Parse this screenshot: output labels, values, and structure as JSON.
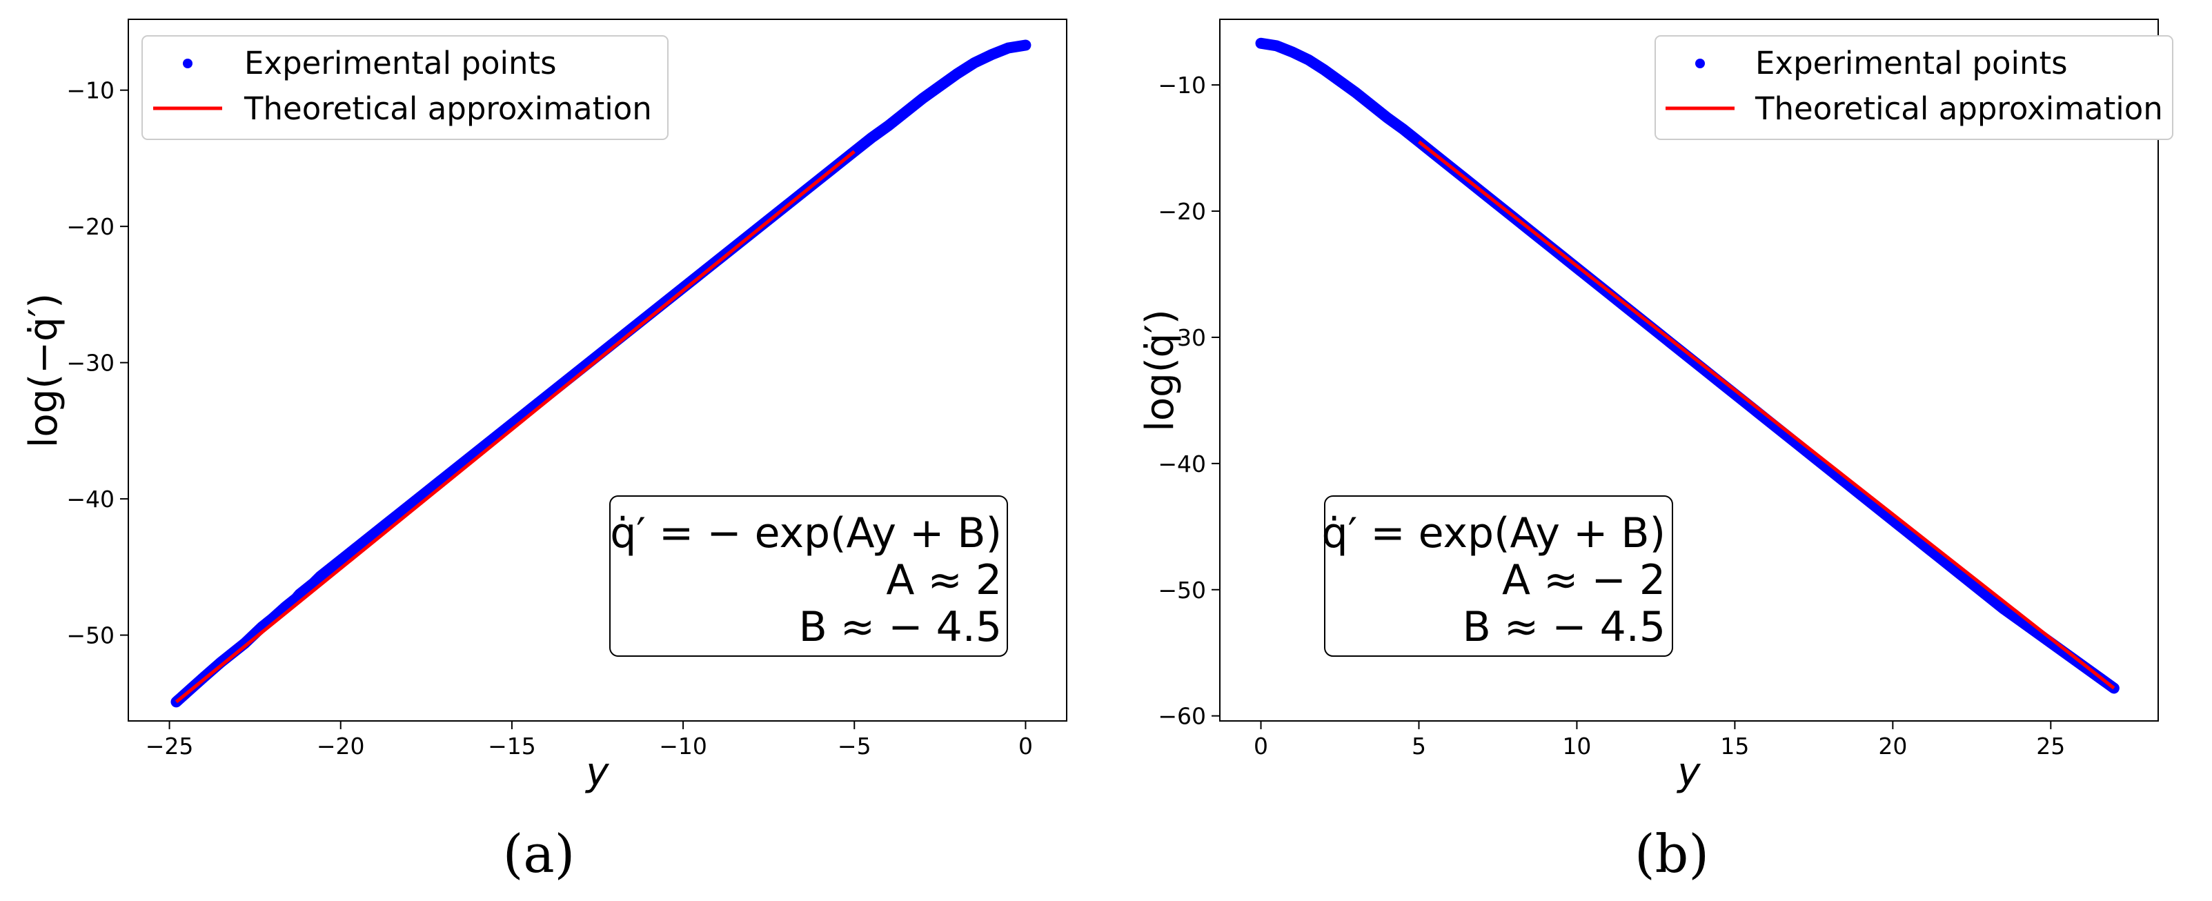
{
  "chart_data": [
    {
      "type": "scatter",
      "panel_label": "(a)",
      "xlabel": "y",
      "ylabel": "log(−q̇′)",
      "xlim": [
        -26.2,
        1.2
      ],
      "ylim": [
        -56.3,
        -4.8
      ],
      "x_ticks": [
        -25,
        -20,
        -15,
        -10,
        -5,
        0
      ],
      "y_ticks": [
        -50,
        -40,
        -30,
        -20,
        -10
      ],
      "x_tick_labels": [
        "−25",
        "−20",
        "−15",
        "−10",
        "−5",
        "0"
      ],
      "y_tick_labels": [
        "−50",
        "−40",
        "−30",
        "−20",
        "−10"
      ],
      "grid": false,
      "legend_position": "top-left",
      "series": [
        {
          "name": "Experimental points",
          "kind": "scatter",
          "color": "#0000ff",
          "x": [
            -24.8,
            -24.4,
            -24.0,
            -23.5,
            -22.8,
            -22.3,
            -22.0,
            -21.6,
            -21.3,
            -21.2,
            -20.8,
            -20.6,
            -20.2,
            -19.8,
            -19.5,
            -19.2,
            -18.9,
            -18.6,
            -18.3,
            -18.0,
            -17.5,
            -17.0,
            -16.5,
            -16.0,
            -15.5,
            -15.0,
            -14.5,
            -14.0,
            -13.5,
            -13.0,
            -12.5,
            -12.0,
            -11.5,
            -11.0,
            -10.5,
            -10.0,
            -9.5,
            -9.0,
            -8.5,
            -8.0,
            -7.5,
            -7.0,
            -6.5,
            -6.0,
            -5.5,
            -5.0,
            -4.5,
            -4.0,
            -3.5,
            -3.0,
            -2.5,
            -2.0,
            -1.5,
            -1.0,
            -0.5,
            0.0
          ],
          "y": [
            -54.9,
            -54.0,
            -53.1,
            -52.0,
            -50.6,
            -49.4,
            -48.8,
            -47.9,
            -47.3,
            -47.0,
            -46.2,
            -45.7,
            -44.9,
            -44.1,
            -43.5,
            -42.9,
            -42.3,
            -41.7,
            -41.1,
            -40.5,
            -39.5,
            -38.5,
            -37.5,
            -36.5,
            -35.5,
            -34.5,
            -33.5,
            -32.5,
            -31.5,
            -30.5,
            -29.5,
            -28.5,
            -27.5,
            -26.5,
            -25.5,
            -24.5,
            -23.5,
            -22.5,
            -21.5,
            -20.5,
            -19.5,
            -18.5,
            -17.5,
            -16.5,
            -15.5,
            -14.5,
            -13.5,
            -12.6,
            -11.6,
            -10.6,
            -9.7,
            -8.8,
            -8.0,
            -7.4,
            -6.9,
            -6.7
          ]
        },
        {
          "name": "Theoretical approximation",
          "kind": "line",
          "color": "#ff0000",
          "x": [
            -24.8,
            -5.0
          ],
          "y": [
            -54.9,
            -14.5
          ]
        }
      ],
      "annotation": {
        "formula": "q̇′ = − exp(Ay + B)",
        "line2": "A ≈ 2",
        "line3": "B ≈ − 4.5"
      }
    },
    {
      "type": "scatter",
      "panel_label": "(b)",
      "xlabel": "y",
      "ylabel": "log(q̇′)",
      "xlim": [
        -1.3,
        28.4
      ],
      "ylim": [
        -60.4,
        -4.8
      ],
      "x_ticks": [
        0,
        5,
        10,
        15,
        20,
        25
      ],
      "y_ticks": [
        -60,
        -50,
        -40,
        -30,
        -20,
        -10
      ],
      "x_tick_labels": [
        "0",
        "5",
        "10",
        "15",
        "20",
        "25"
      ],
      "y_tick_labels": [
        "−60",
        "−50",
        "−40",
        "−30",
        "−20",
        "−10"
      ],
      "grid": false,
      "legend_position": "top-right",
      "series": [
        {
          "name": "Experimental points",
          "kind": "scatter",
          "color": "#0000ff",
          "x": [
            0.0,
            0.5,
            1.0,
            1.5,
            2.0,
            2.5,
            3.0,
            3.5,
            4.0,
            4.5,
            5.0,
            5.5,
            6.0,
            6.5,
            7.0,
            7.5,
            8.0,
            8.5,
            9.0,
            9.5,
            10.0,
            10.5,
            11.0,
            11.5,
            12.0,
            12.5,
            13.0,
            13.5,
            14.0,
            14.5,
            15.0,
            15.5,
            16.0,
            16.5,
            17.0,
            17.5,
            18.0,
            18.5,
            19.0,
            19.4,
            19.8,
            20.1,
            20.4,
            20.6,
            20.9,
            21.2,
            21.5,
            22.1,
            23.2,
            23.5,
            27.0
          ],
          "y": [
            -6.7,
            -6.9,
            -7.4,
            -8.0,
            -8.8,
            -9.7,
            -10.6,
            -11.6,
            -12.6,
            -13.5,
            -14.5,
            -15.5,
            -16.5,
            -17.5,
            -18.5,
            -19.5,
            -20.5,
            -21.5,
            -22.5,
            -23.5,
            -24.5,
            -25.5,
            -26.5,
            -27.5,
            -28.5,
            -29.5,
            -30.5,
            -31.5,
            -32.5,
            -33.5,
            -34.5,
            -35.5,
            -36.5,
            -37.5,
            -38.5,
            -39.5,
            -40.5,
            -41.5,
            -42.5,
            -43.3,
            -44.1,
            -44.7,
            -45.3,
            -45.7,
            -46.3,
            -46.9,
            -47.5,
            -48.7,
            -50.9,
            -51.5,
            -57.8
          ]
        },
        {
          "name": "Theoretical approximation",
          "kind": "line",
          "color": "#ff0000",
          "x": [
            5.0,
            27.0
          ],
          "y": [
            -14.5,
            -57.8
          ]
        }
      ],
      "annotation": {
        "formula": "q̇′ = exp(Ay + B)",
        "line2": "A ≈ − 2",
        "line3": "B ≈ − 4.5"
      }
    }
  ]
}
